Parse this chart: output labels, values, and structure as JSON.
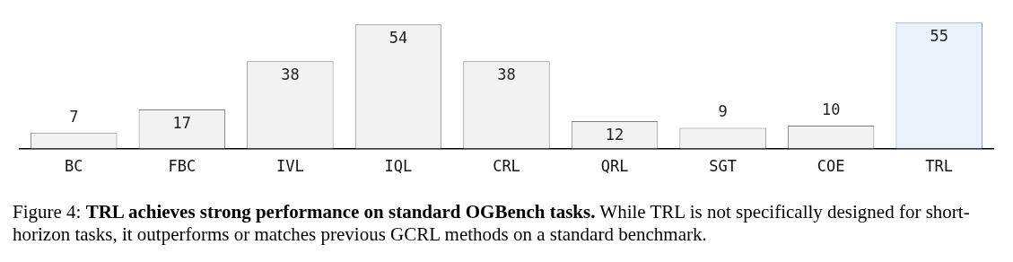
{
  "chart_data": {
    "type": "bar",
    "categories": [
      "BC",
      "FBC",
      "IVL",
      "IQL",
      "CRL",
      "QRL",
      "SGT",
      "COE",
      "TRL"
    ],
    "values": [
      7,
      17,
      38,
      54,
      38,
      12,
      9,
      10,
      55
    ],
    "colors": [
      "#f2f2f2",
      "#f2f2f2",
      "#f2f2f2",
      "#f2f2f2",
      "#f2f2f2",
      "#f2f2f2",
      "#f2f2f2",
      "#f2f2f2",
      "#eaf1fa"
    ],
    "data_labels": true,
    "annotations": [
      "Figure 4: ",
      "TRL achieves strong performance on standard OGBench tasks.",
      " While TRL is not specifically designed for short-horizon tasks, it outperforms or matches previous GCRL methods on a standard benchmark."
    ]
  }
}
